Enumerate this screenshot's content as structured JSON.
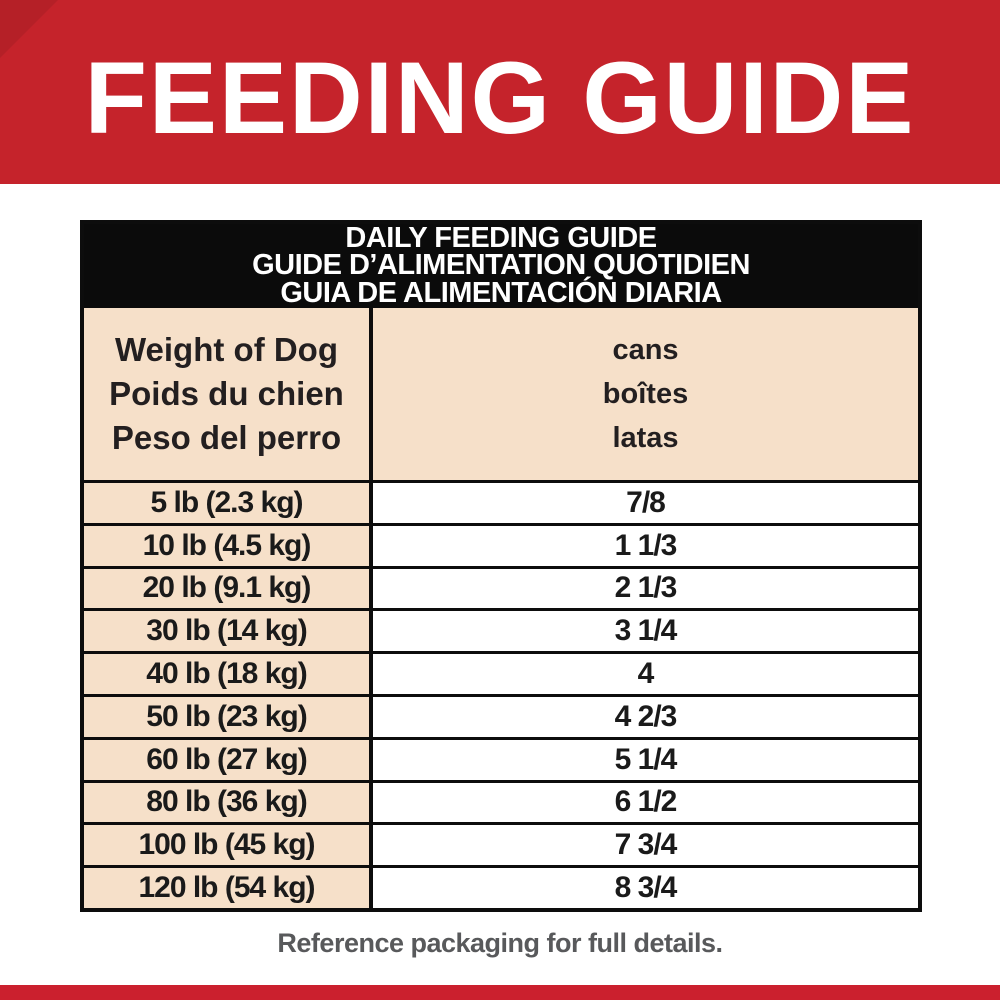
{
  "banner": {
    "title": "FEEDING GUIDE"
  },
  "table": {
    "title_line1": "DAILY FEEDING GUIDE",
    "title_line2": "GUIDE D’ALIMENTATION QUOTIDIEN",
    "title_line3": "GUIA DE ALIMENTACIÓN DIARIA",
    "weight_header_line1": "Weight of Dog",
    "weight_header_line2": "Poids du chien",
    "weight_header_line3": "Peso del perro",
    "cans_header_line1": "cans",
    "cans_header_line2": "boîtes",
    "cans_header_line3": "latas",
    "rows": [
      {
        "weight": "5 lb (2.3 kg)",
        "cans": "7/8"
      },
      {
        "weight": "10 lb (4.5 kg)",
        "cans": "1 1/3"
      },
      {
        "weight": "20 lb (9.1 kg)",
        "cans": "2 1/3"
      },
      {
        "weight": "30 lb (14 kg)",
        "cans": "3 1/4"
      },
      {
        "weight": "40 lb (18 kg)",
        "cans": "4"
      },
      {
        "weight": "50 lb (23 kg)",
        "cans": "4 2/3"
      },
      {
        "weight": "60 lb (27 kg)",
        "cans": "5 1/4"
      },
      {
        "weight": "80 lb (36 kg)",
        "cans": "6 1/2"
      },
      {
        "weight": "100 lb (45 kg)",
        "cans": "7 3/4"
      },
      {
        "weight": "120 lb (54 kg)",
        "cans": "8 3/4"
      }
    ]
  },
  "footer": {
    "note": "Reference packaging for full details."
  },
  "colors": {
    "banner_red": "#c5232b",
    "strip_red": "#cb202e",
    "peach": "#f6e0c9",
    "table_black": "#0d0d0d",
    "note_gray": "#58595b"
  }
}
